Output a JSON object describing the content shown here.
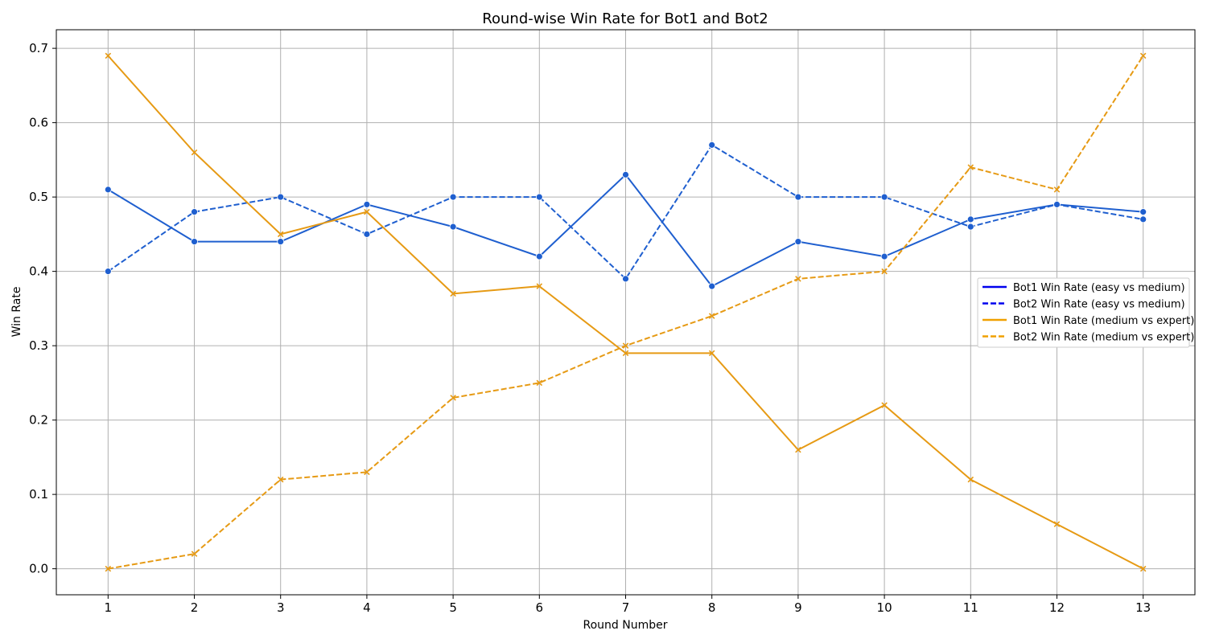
{
  "chart_data": {
    "type": "line",
    "title": "Round-wise Win Rate for Bot1 and Bot2",
    "xlabel": "Round Number",
    "ylabel": "Win Rate",
    "x": [
      1,
      2,
      3,
      4,
      5,
      6,
      7,
      8,
      9,
      10,
      11,
      12,
      13
    ],
    "xlim": [
      0.4,
      13.6
    ],
    "ylim": [
      -0.035,
      0.725
    ],
    "yticks": [
      0.0,
      0.1,
      0.2,
      0.3,
      0.4,
      0.5,
      0.6,
      0.7
    ],
    "yticklabels": [
      "0.0",
      "0.1",
      "0.2",
      "0.3",
      "0.4",
      "0.5",
      "0.6",
      "0.7"
    ],
    "grid": true,
    "legend_position": "center-right",
    "series": [
      {
        "name": "Bot1 Win Rate (easy vs medium)",
        "color": "#1f5fcf",
        "legend_color": "#0000ee",
        "dash": "solid",
        "marker": "circle",
        "values": [
          0.51,
          0.44,
          0.44,
          0.49,
          0.46,
          0.42,
          0.53,
          0.38,
          0.44,
          0.42,
          0.47,
          0.49,
          0.48
        ]
      },
      {
        "name": "Bot2 Win Rate (easy vs medium)",
        "color": "#1f5fcf",
        "legend_color": "#0000ee",
        "dash": "dashed",
        "marker": "circle",
        "values": [
          0.4,
          0.48,
          0.5,
          0.45,
          0.5,
          0.5,
          0.39,
          0.57,
          0.5,
          0.5,
          0.46,
          0.49,
          0.47
        ]
      },
      {
        "name": "Bot1 Win Rate (medium vs expert)",
        "color": "#e69a14",
        "legend_color": "#f0a000",
        "dash": "solid",
        "marker": "x",
        "values": [
          0.69,
          0.56,
          0.45,
          0.48,
          0.37,
          0.38,
          0.29,
          0.29,
          0.16,
          0.22,
          0.12,
          0.06,
          0.0
        ]
      },
      {
        "name": "Bot2 Win Rate (medium vs expert)",
        "color": "#e69a14",
        "legend_color": "#f0a000",
        "dash": "dashed",
        "marker": "x",
        "values": [
          0.0,
          0.02,
          0.12,
          0.13,
          0.23,
          0.25,
          0.3,
          0.34,
          0.39,
          0.4,
          0.54,
          0.51,
          0.69
        ]
      }
    ]
  }
}
